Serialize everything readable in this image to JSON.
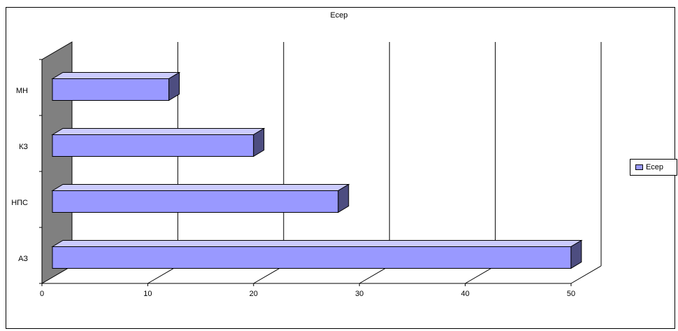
{
  "chart_data": {
    "type": "bar",
    "orientation": "horizontal",
    "three_d": true,
    "title": "Есер",
    "categories": [
      "МН",
      "КЗ",
      "НПС",
      "АЗ"
    ],
    "series": [
      {
        "name": "Есер",
        "values": [
          11,
          19,
          27,
          49
        ]
      }
    ],
    "xlim": [
      0,
      50
    ],
    "xticks": [
      0,
      10,
      20,
      30,
      40,
      50
    ],
    "grid": true,
    "legend_position": "right",
    "colors": {
      "bar_front": "#9999ff",
      "bar_top": "#ccccff",
      "bar_side": "#4d4d80",
      "wall": "#808080"
    }
  }
}
